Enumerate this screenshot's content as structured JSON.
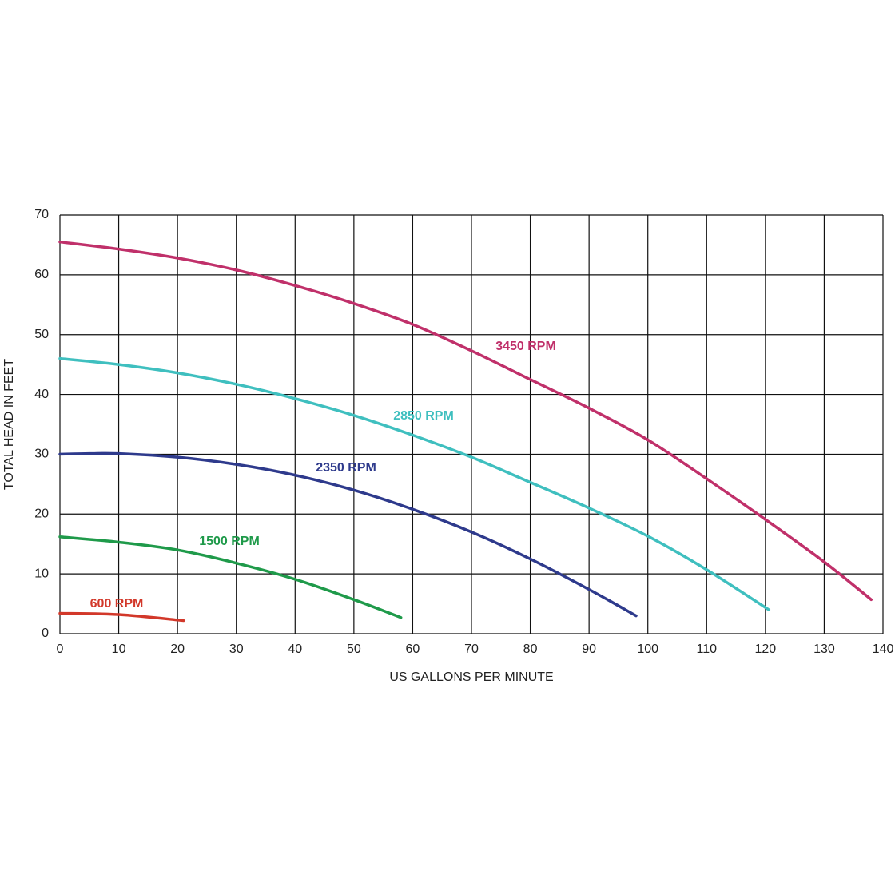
{
  "chart_data": {
    "type": "line",
    "x_label": "US GALLONS PER MINUTE",
    "y_label": "TOTAL HEAD IN FEET",
    "xlim": [
      0,
      140
    ],
    "ylim": [
      0,
      70
    ],
    "xticks": [
      0,
      10,
      20,
      30,
      40,
      50,
      60,
      70,
      80,
      90,
      100,
      110,
      120,
      130,
      140
    ],
    "yticks": [
      0,
      10,
      20,
      30,
      40,
      50,
      60,
      70
    ],
    "grid": true,
    "series": [
      {
        "name": "3450 RPM",
        "color": "#c0306a",
        "x": [
          0,
          10,
          20,
          30,
          40,
          50,
          60,
          70,
          80,
          90,
          100,
          110,
          120,
          130,
          138
        ],
        "values": [
          65.5,
          64.3,
          62.8,
          60.8,
          58.2,
          55.2,
          51.7,
          47.3,
          42.5,
          37.7,
          32.4,
          25.9,
          19.1,
          12,
          5.7
        ]
      },
      {
        "name": "2850 RPM",
        "color": "#3fbfbf",
        "x": [
          0,
          10,
          20,
          30,
          40,
          50,
          60,
          70,
          80,
          90,
          100,
          110,
          120.6
        ],
        "values": [
          46,
          45,
          43.6,
          41.7,
          39.3,
          36.5,
          33.2,
          29.5,
          25.3,
          21,
          16.3,
          10.7,
          4
        ]
      },
      {
        "name": "2350 RPM",
        "color": "#2e3a8c",
        "x": [
          0,
          5,
          10,
          20,
          30,
          40,
          50,
          60,
          70,
          80,
          90,
          98
        ],
        "values": [
          30,
          30.1,
          30.1,
          29.5,
          28.3,
          26.5,
          24,
          20.8,
          17,
          12.5,
          7.4,
          3
        ]
      },
      {
        "name": "1500 RPM",
        "color": "#1f9a4a",
        "x": [
          0,
          10,
          20,
          30,
          40,
          50,
          58
        ],
        "values": [
          16.2,
          15.3,
          14,
          11.8,
          9.1,
          5.7,
          2.7
        ]
      },
      {
        "name": "600 RPM",
        "color": "#d2382a",
        "x": [
          0,
          10,
          21
        ],
        "values": [
          3.4,
          3.2,
          2.2
        ]
      }
    ]
  }
}
